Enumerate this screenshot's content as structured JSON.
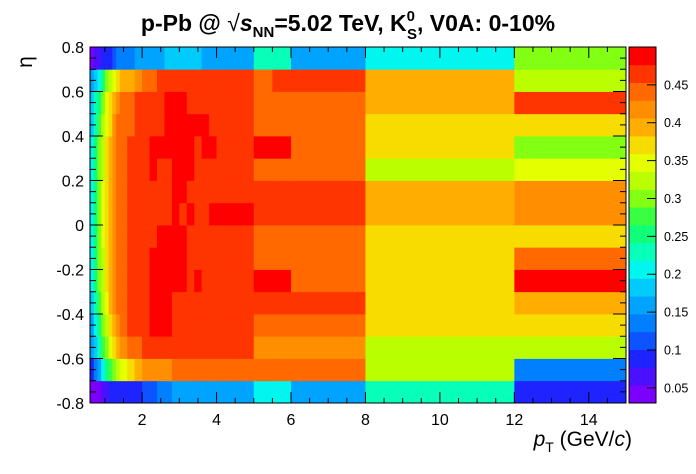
{
  "chart_data": {
    "type": "heatmap",
    "title": {
      "prefix": "p-Pb @ ",
      "sqrt_symbol": "√",
      "s": "s",
      "s_sub": "NN",
      "energy": "=5.02 TeV, K",
      "k_sup": "0",
      "k_sub": "S",
      "suffix": ", V0A: 0-10%"
    },
    "xlabel": {
      "main": "p",
      "sub": "T",
      "unit_open": " (GeV/",
      "unit_var": "c",
      "unit_close": ")"
    },
    "ylabel": "η",
    "xlim": [
      0.6,
      15.0
    ],
    "ylim": [
      -0.8,
      0.8
    ],
    "zlim": [
      0.03,
      0.5
    ],
    "x_ticks": [
      2,
      4,
      6,
      8,
      10,
      12,
      14
    ],
    "y_ticks": [
      "-0.8",
      "-0.6",
      "-0.4",
      "-0.2",
      "0",
      "0.2",
      "0.4",
      "0.6",
      "0.8"
    ],
    "z_ticks": [
      "0.05",
      "0.1",
      "0.15",
      "0.2",
      "0.25",
      "0.3",
      "0.35",
      "0.4",
      "0.45"
    ],
    "x_edges": [
      0.6,
      0.7,
      0.8,
      0.9,
      1.0,
      1.1,
      1.2,
      1.3,
      1.4,
      1.6,
      1.8,
      2.0,
      2.2,
      2.4,
      2.6,
      2.8,
      3.0,
      3.2,
      3.4,
      3.6,
      3.8,
      4.0,
      4.5,
      5.0,
      5.5,
      6.0,
      8.0,
      12.0,
      15.0
    ],
    "y_edges": [
      -0.8,
      -0.7,
      -0.6,
      -0.5,
      -0.4,
      -0.3,
      -0.2,
      -0.1,
      0.0,
      0.1,
      0.2,
      0.3,
      0.4,
      0.5,
      0.6,
      0.7,
      0.8
    ],
    "z": [
      [
        0.03,
        0.04,
        0.05,
        0.06,
        0.07,
        0.08,
        0.08,
        0.09,
        0.09,
        0.09,
        0.1,
        0.11,
        0.12,
        0.13,
        0.14,
        0.15,
        0.15,
        0.16,
        0.16,
        0.16,
        0.16,
        0.16,
        0.16,
        0.2,
        0.2,
        0.16,
        0.22,
        0.1
      ],
      [
        0.1,
        0.14,
        0.17,
        0.21,
        0.25,
        0.28,
        0.31,
        0.33,
        0.34,
        0.36,
        0.39,
        0.41,
        0.42,
        0.42,
        0.42,
        0.43,
        0.44,
        0.44,
        0.44,
        0.44,
        0.45,
        0.45,
        0.45,
        0.44,
        0.44,
        0.44,
        0.33,
        0.13
      ],
      [
        0.15,
        0.19,
        0.23,
        0.28,
        0.31,
        0.34,
        0.37,
        0.4,
        0.41,
        0.44,
        0.45,
        0.46,
        0.47,
        0.47,
        0.46,
        0.46,
        0.46,
        0.46,
        0.46,
        0.46,
        0.46,
        0.46,
        0.46,
        0.42,
        0.42,
        0.42,
        0.33,
        0.32
      ],
      [
        0.17,
        0.21,
        0.26,
        0.3,
        0.33,
        0.37,
        0.4,
        0.42,
        0.44,
        0.46,
        0.46,
        0.47,
        0.48,
        0.48,
        0.48,
        0.47,
        0.47,
        0.47,
        0.47,
        0.46,
        0.46,
        0.46,
        0.46,
        0.45,
        0.45,
        0.45,
        0.37,
        0.36
      ],
      [
        0.19,
        0.24,
        0.28,
        0.32,
        0.35,
        0.39,
        0.41,
        0.43,
        0.45,
        0.46,
        0.47,
        0.47,
        0.48,
        0.48,
        0.48,
        0.47,
        0.47,
        0.47,
        0.47,
        0.46,
        0.46,
        0.46,
        0.46,
        0.46,
        0.46,
        0.46,
        0.37,
        0.39
      ],
      [
        0.2,
        0.25,
        0.29,
        0.33,
        0.36,
        0.39,
        0.41,
        0.43,
        0.45,
        0.46,
        0.47,
        0.47,
        0.48,
        0.48,
        0.49,
        0.48,
        0.49,
        0.47,
        0.48,
        0.46,
        0.46,
        0.46,
        0.46,
        0.49,
        0.49,
        0.43,
        0.38,
        0.49
      ],
      [
        0.2,
        0.25,
        0.29,
        0.33,
        0.37,
        0.4,
        0.42,
        0.44,
        0.45,
        0.46,
        0.47,
        0.47,
        0.48,
        0.48,
        0.48,
        0.48,
        0.48,
        0.47,
        0.47,
        0.46,
        0.46,
        0.46,
        0.46,
        0.44,
        0.44,
        0.44,
        0.36,
        0.43
      ],
      [
        0.21,
        0.26,
        0.3,
        0.34,
        0.37,
        0.4,
        0.42,
        0.44,
        0.45,
        0.46,
        0.46,
        0.47,
        0.47,
        0.48,
        0.48,
        0.48,
        0.48,
        0.47,
        0.47,
        0.46,
        0.46,
        0.46,
        0.46,
        0.44,
        0.44,
        0.44,
        0.38,
        0.37
      ],
      [
        0.21,
        0.26,
        0.3,
        0.34,
        0.37,
        0.4,
        0.42,
        0.44,
        0.45,
        0.46,
        0.46,
        0.47,
        0.47,
        0.47,
        0.47,
        0.48,
        0.47,
        0.49,
        0.47,
        0.46,
        0.49,
        0.49,
        0.49,
        0.46,
        0.46,
        0.46,
        0.4,
        0.41
      ],
      [
        0.21,
        0.26,
        0.3,
        0.34,
        0.37,
        0.4,
        0.42,
        0.44,
        0.45,
        0.46,
        0.46,
        0.47,
        0.47,
        0.47,
        0.47,
        0.48,
        0.48,
        0.47,
        0.47,
        0.46,
        0.46,
        0.46,
        0.46,
        0.46,
        0.46,
        0.46,
        0.4,
        0.41
      ],
      [
        0.21,
        0.25,
        0.29,
        0.33,
        0.37,
        0.4,
        0.42,
        0.44,
        0.45,
        0.46,
        0.47,
        0.47,
        0.48,
        0.46,
        0.47,
        0.48,
        0.48,
        0.48,
        0.47,
        0.46,
        0.46,
        0.46,
        0.46,
        0.44,
        0.44,
        0.44,
        0.33,
        0.34
      ],
      [
        0.2,
        0.25,
        0.29,
        0.33,
        0.36,
        0.39,
        0.41,
        0.43,
        0.45,
        0.46,
        0.47,
        0.47,
        0.48,
        0.48,
        0.49,
        0.48,
        0.49,
        0.48,
        0.47,
        0.49,
        0.48,
        0.47,
        0.47,
        0.49,
        0.49,
        0.44,
        0.38,
        0.3
      ],
      [
        0.19,
        0.24,
        0.28,
        0.32,
        0.35,
        0.38,
        0.41,
        0.43,
        0.44,
        0.45,
        0.46,
        0.47,
        0.47,
        0.47,
        0.48,
        0.48,
        0.48,
        0.48,
        0.48,
        0.49,
        0.47,
        0.47,
        0.47,
        0.44,
        0.44,
        0.44,
        0.37,
        0.37
      ],
      [
        0.18,
        0.22,
        0.26,
        0.3,
        0.34,
        0.37,
        0.39,
        0.41,
        0.43,
        0.45,
        0.46,
        0.46,
        0.47,
        0.47,
        0.48,
        0.48,
        0.48,
        0.47,
        0.47,
        0.47,
        0.46,
        0.46,
        0.46,
        0.44,
        0.44,
        0.44,
        0.4,
        0.47
      ],
      [
        0.15,
        0.18,
        0.21,
        0.25,
        0.29,
        0.32,
        0.34,
        0.37,
        0.39,
        0.4,
        0.42,
        0.44,
        0.45,
        0.46,
        0.46,
        0.46,
        0.46,
        0.46,
        0.46,
        0.46,
        0.46,
        0.46,
        0.46,
        0.44,
        0.47,
        0.46,
        0.4,
        0.33
      ],
      [
        0.04,
        0.06,
        0.07,
        0.08,
        0.09,
        0.1,
        0.11,
        0.13,
        0.14,
        0.14,
        0.15,
        0.15,
        0.16,
        0.17,
        0.18,
        0.19,
        0.19,
        0.19,
        0.18,
        0.16,
        0.15,
        0.15,
        0.15,
        0.22,
        0.22,
        0.16,
        0.21,
        0.31
      ]
    ],
    "grid": false,
    "colorbar": "right"
  }
}
